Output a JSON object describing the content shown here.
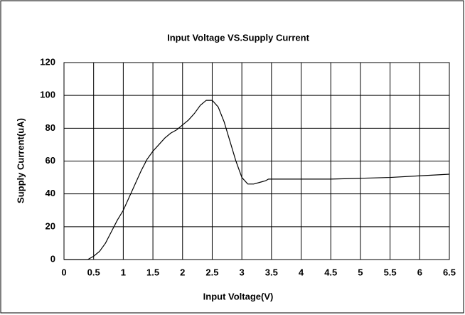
{
  "chart_data": {
    "type": "line",
    "title": "Input Voltage VS.Supply Current",
    "x_label": "Input Voltage(V)",
    "y_label": "Supply Current(uA)",
    "x": [
      0,
      0.4,
      0.5,
      0.6,
      0.7,
      0.8,
      0.9,
      1.0,
      1.1,
      1.2,
      1.3,
      1.4,
      1.5,
      1.6,
      1.7,
      1.8,
      1.9,
      2.0,
      2.1,
      2.2,
      2.3,
      2.4,
      2.5,
      2.6,
      2.7,
      2.8,
      2.9,
      3.0,
      3.1,
      3.2,
      3.3,
      3.4,
      3.45,
      3.5,
      4.0,
      4.5,
      5.0,
      5.5,
      6.0,
      6.5
    ],
    "series": [
      {
        "color": "#000000",
        "values": [
          0,
          0,
          2,
          5,
          10,
          17,
          24,
          30,
          38,
          46,
          54,
          61,
          66,
          70,
          74,
          77,
          79,
          82,
          85,
          89,
          94,
          97,
          97,
          93,
          84,
          72,
          60,
          50,
          46,
          46,
          47,
          48,
          49,
          49,
          49,
          49,
          49.5,
          50,
          51,
          52
        ]
      }
    ],
    "xlim": [
      0,
      6.5
    ],
    "xticks": [
      0,
      0.5,
      1,
      1.5,
      2,
      2.5,
      3,
      3.5,
      4,
      4.5,
      5,
      5.5,
      6,
      6.5
    ],
    "ylim": [
      0,
      120
    ],
    "yticks": [
      0,
      20,
      40,
      60,
      80,
      100,
      120
    ],
    "grid": true
  }
}
